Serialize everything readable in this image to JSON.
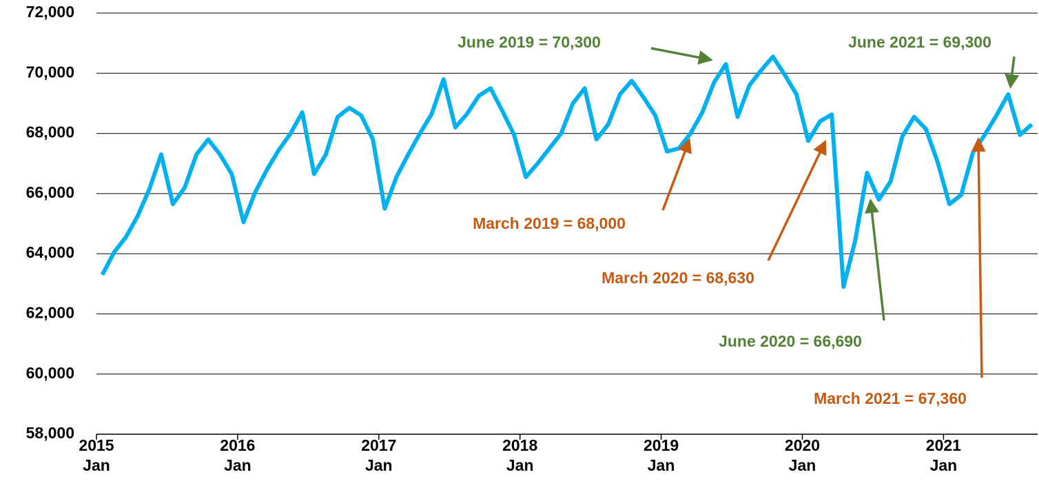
{
  "chart_data": {
    "type": "line",
    "categories": [
      "2015 Jan",
      null,
      null,
      null,
      null,
      null,
      null,
      null,
      null,
      null,
      null,
      null,
      "2016 Jan",
      null,
      null,
      null,
      null,
      null,
      null,
      null,
      null,
      null,
      null,
      null,
      "2017 Jan",
      null,
      null,
      null,
      null,
      null,
      null,
      null,
      null,
      null,
      null,
      null,
      "2018 Jan",
      null,
      null,
      null,
      null,
      null,
      null,
      null,
      null,
      null,
      null,
      null,
      "2019 Jan",
      null,
      null,
      null,
      null,
      null,
      null,
      null,
      null,
      null,
      null,
      null,
      "2020 Jan",
      null,
      null,
      null,
      null,
      null,
      null,
      null,
      null,
      null,
      null,
      null,
      "2021 Jan",
      null,
      null,
      null,
      null,
      null,
      null,
      null
    ],
    "series": [
      {
        "color": "#00b0f0",
        "values": [
          63300,
          64050,
          64550,
          65250,
          66150,
          67300,
          65650,
          66200,
          67300,
          67800,
          67300,
          66650,
          65050,
          66050,
          66800,
          67450,
          68000,
          68700,
          66650,
          67300,
          68550,
          68850,
          68600,
          67800,
          65500,
          66550,
          67300,
          68000,
          68650,
          69800,
          68200,
          68650,
          69250,
          69500,
          68750,
          67950,
          66550,
          67000,
          67500,
          68000,
          69000,
          69500,
          67800,
          68300,
          69300,
          69750,
          69200,
          68600,
          67400,
          67500,
          68000,
          68700,
          69700,
          70300,
          68550,
          69600,
          70100,
          70550,
          69950,
          69300,
          67750,
          68400,
          68630,
          62900,
          64450,
          66690,
          65800,
          66400,
          67900,
          68550,
          68150,
          67050,
          65650,
          65950,
          67360,
          67950,
          68600,
          69300,
          67950,
          68300
        ]
      }
    ],
    "ylim": [
      58000,
      72000
    ],
    "yticks": [
      {
        "value": 58000,
        "label": "58,000"
      },
      {
        "value": 60000,
        "label": "60,000"
      },
      {
        "value": 62000,
        "label": "62,000"
      },
      {
        "value": 64000,
        "label": "64,000"
      },
      {
        "value": 66000,
        "label": "66,000"
      },
      {
        "value": 68000,
        "label": "68,000"
      },
      {
        "value": 70000,
        "label": "70,000"
      },
      {
        "value": 72000,
        "label": "72,000"
      }
    ],
    "grid": true,
    "annotations": [
      {
        "text": "June 2019 = 70,300",
        "color": "#538135"
      },
      {
        "text": "June 2021 = 69,300",
        "color": "#538135"
      },
      {
        "text": "March 2019 = 68,000",
        "color": "#c55a11"
      },
      {
        "text": "March 2020 = 68,630",
        "color": "#c55a11"
      },
      {
        "text": "June 2020 = 66,690",
        "color": "#538135"
      },
      {
        "text": "March 2021 = 67,360",
        "color": "#c55a11"
      }
    ]
  }
}
